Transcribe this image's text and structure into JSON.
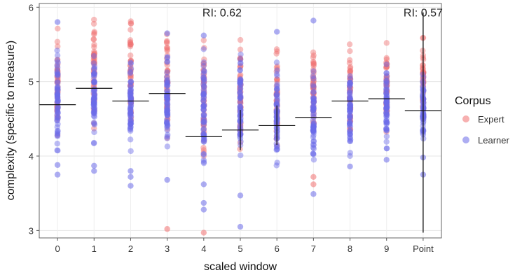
{
  "chart_data": {
    "type": "scatter",
    "xlabel": "scaled window",
    "ylabel": "complexity (specific to measure)",
    "categories": [
      "0",
      "1",
      "2",
      "3",
      "4",
      "5",
      "6",
      "7",
      "8",
      "9",
      "Point"
    ],
    "ylim": [
      2.9,
      6.05
    ],
    "yticks": [
      3,
      4,
      5,
      6
    ],
    "grid": true,
    "legend": {
      "title": "Corpus",
      "position": "right",
      "entries": [
        {
          "label": "Expert",
          "color": "#f07070"
        },
        {
          "label": "Learner",
          "color": "#6a6ae8"
        }
      ]
    },
    "annotations": [
      {
        "text": "RI: 0.62",
        "x": "4.5",
        "y": 5.98
      },
      {
        "text": "RI: 0.57",
        "x": "Point",
        "y": 5.98
      }
    ],
    "means": [
      4.69,
      4.91,
      4.74,
      4.84,
      4.26,
      4.35,
      4.41,
      4.52,
      4.74,
      4.77,
      4.61
    ],
    "error_bars": [
      {
        "category": "5",
        "low": 4.08,
        "high": 4.62
      },
      {
        "category": "6",
        "low": 4.15,
        "high": 4.68
      },
      {
        "category": "Point",
        "low": 2.97,
        "high": 5.93
      }
    ],
    "series": [
      {
        "name": "Expert",
        "color": "#f07070",
        "range": [
          [
            4.1,
            5.72
          ],
          [
            4.3,
            5.95
          ],
          [
            4.2,
            5.92
          ],
          [
            4.15,
            5.7
          ],
          [
            3.9,
            5.75
          ],
          [
            4.0,
            5.65
          ],
          [
            4.1,
            5.45
          ],
          [
            4.2,
            5.5
          ],
          [
            4.3,
            5.55
          ],
          [
            4.3,
            5.6
          ],
          [
            4.3,
            5.6
          ]
        ],
        "outliers": [
          {
            "category": "3",
            "y": 3.02
          },
          {
            "category": "4",
            "y": 2.97
          },
          {
            "category": "7",
            "y": 3.62
          },
          {
            "category": "7",
            "y": 3.72
          }
        ]
      },
      {
        "name": "Learner",
        "color": "#6a6ae8",
        "range": [
          [
            3.95,
            5.45
          ],
          [
            4.1,
            5.35
          ],
          [
            4.0,
            5.3
          ],
          [
            4.0,
            5.4
          ],
          [
            3.8,
            5.5
          ],
          [
            3.85,
            5.4
          ],
          [
            3.8,
            5.3
          ],
          [
            3.85,
            5.2
          ],
          [
            4.0,
            5.2
          ],
          [
            4.0,
            5.3
          ],
          [
            4.1,
            5.1
          ]
        ],
        "outliers": [
          {
            "category": "0",
            "y": 5.8
          },
          {
            "category": "0",
            "y": 3.75
          },
          {
            "category": "0",
            "y": 3.88
          },
          {
            "category": "1",
            "y": 3.8
          },
          {
            "category": "1",
            "y": 3.87
          },
          {
            "category": "2",
            "y": 3.6
          },
          {
            "category": "2",
            "y": 3.72
          },
          {
            "category": "2",
            "y": 3.8
          },
          {
            "category": "3",
            "y": 5.65
          },
          {
            "category": "3",
            "y": 3.68
          },
          {
            "category": "4",
            "y": 3.37
          },
          {
            "category": "4",
            "y": 3.28
          },
          {
            "category": "4",
            "y": 3.62
          },
          {
            "category": "4",
            "y": 5.62
          },
          {
            "category": "5",
            "y": 3.47
          },
          {
            "category": "5",
            "y": 3.05
          },
          {
            "category": "6",
            "y": 5.67
          },
          {
            "category": "7",
            "y": 5.82
          },
          {
            "category": "7",
            "y": 3.49
          },
          {
            "category": "8",
            "y": 3.86
          },
          {
            "category": "9",
            "y": 3.95
          },
          {
            "category": "Point",
            "y": 3.75
          },
          {
            "category": "Point",
            "y": 3.98
          }
        ]
      }
    ]
  }
}
